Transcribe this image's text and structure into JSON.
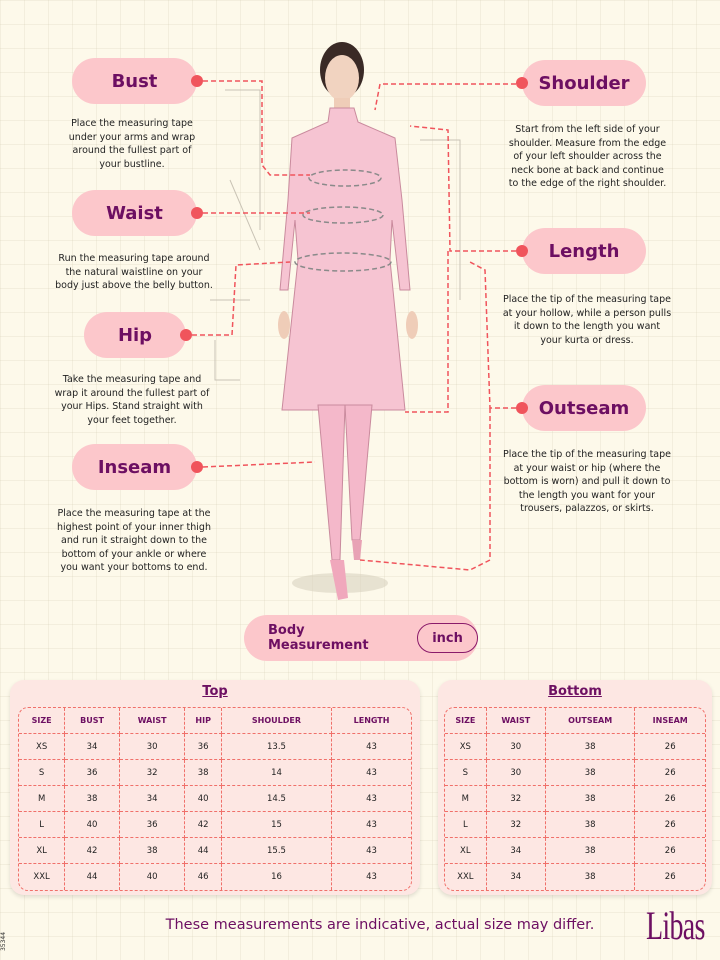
{
  "measurements": {
    "bust": {
      "label": "Bust",
      "desc": "Place the measuring tape under your arms and wrap around the fullest part of your bustline."
    },
    "waist": {
      "label": "Waist",
      "desc": "Run the measuring tape around the natural waistline on your body just above the belly button."
    },
    "hip": {
      "label": "Hip",
      "desc": "Take the measuring tape and wrap it around the fullest part of your Hips. Stand straight with your feet together."
    },
    "inseam": {
      "label": "Inseam",
      "desc": "Place the measuring tape at the highest point of your inner thigh and run it straight down to the bottom of your ankle or where you want your bottoms to end."
    },
    "shoulder": {
      "label": "Shoulder",
      "desc": "Start from the left side of your shoulder. Measure from the edge of your left shoulder across the neck bone at back and continue to the edge of the right shoulder."
    },
    "length": {
      "label": "Length",
      "desc": "Place the tip of the measuring tape at your hollow, while a person pulls it down to the length you want your kurta or dress."
    },
    "outseam": {
      "label": "Outseam",
      "desc": "Place the tip of the measuring tape at your waist or hip (where the bottom is worn) and pull it down to the length you want for your trousers, palazzos, or skirts."
    }
  },
  "body_measurement": {
    "label": "Body Measurement",
    "unit": "inch"
  },
  "top_table": {
    "title": "Top",
    "headers": [
      "SIZE",
      "BUST",
      "WAIST",
      "HIP",
      "SHOULDER",
      "LENGTH"
    ],
    "rows": [
      [
        "XS",
        "34",
        "30",
        "36",
        "13.5",
        "43"
      ],
      [
        "S",
        "36",
        "32",
        "38",
        "14",
        "43"
      ],
      [
        "M",
        "38",
        "34",
        "40",
        "14.5",
        "43"
      ],
      [
        "L",
        "40",
        "36",
        "42",
        "15",
        "43"
      ],
      [
        "XL",
        "42",
        "38",
        "44",
        "15.5",
        "43"
      ],
      [
        "XXL",
        "44",
        "40",
        "46",
        "16",
        "43"
      ]
    ]
  },
  "bottom_table": {
    "title": "Bottom",
    "headers": [
      "SIZE",
      "WAIST",
      "OUTSEAM",
      "INSEAM"
    ],
    "rows": [
      [
        "XS",
        "30",
        "38",
        "26"
      ],
      [
        "S",
        "30",
        "38",
        "26"
      ],
      [
        "M",
        "32",
        "38",
        "26"
      ],
      [
        "L",
        "32",
        "38",
        "26"
      ],
      [
        "XL",
        "34",
        "38",
        "26"
      ],
      [
        "XXL",
        "34",
        "38",
        "26"
      ]
    ]
  },
  "footer": {
    "note": "These measurements are indicative, actual size may differ.",
    "brand": "Libas",
    "code": "35344"
  },
  "colors": {
    "accent": "#6d0f62",
    "pill": "#fcc7cb",
    "dot": "#f0545c",
    "background": "#fdf9ea"
  }
}
